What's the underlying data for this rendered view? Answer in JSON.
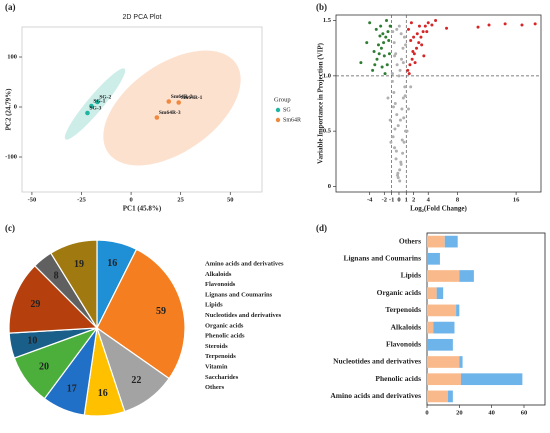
{
  "chart_data": [
    {
      "type": "scatter",
      "panel": "(a)",
      "title": "2D PCA Plot",
      "xlabel": "PC1 (45.8%)",
      "ylabel": "PC2 (24.79%)",
      "xlim": [
        -55,
        66
      ],
      "xticks": [
        -50,
        -25,
        0,
        25,
        50
      ],
      "ylim": [
        -170,
        160
      ],
      "yticks": [
        -100,
        0,
        100
      ],
      "legend_title": "Group",
      "series": [
        {
          "name": "SG",
          "color": "#1fb5a0",
          "labels": [
            "SG-2",
            "SG-1",
            "SG-3"
          ],
          "x": [
            -17,
            -20,
            -22
          ],
          "y": [
            10,
            2,
            -12
          ]
        },
        {
          "name": "Sm64R",
          "color": "#f0883e",
          "labels": [
            "Sm64R-2",
            "Sm64R-1",
            "Sm64R-3"
          ],
          "x": [
            19,
            24,
            13
          ],
          "y": [
            11,
            9,
            -21
          ]
        }
      ]
    },
    {
      "type": "volcano",
      "panel": "(b)",
      "xlabel": "Log₂(Fold Change)",
      "ylabel": "Variable Importance in Projection (VIP)",
      "xlim": [
        -8.6,
        19.4
      ],
      "xticks": [
        -4,
        -2,
        -1,
        0,
        1,
        2,
        4,
        8,
        16
      ],
      "ylim": [
        -0.05,
        1.55
      ],
      "yticks": [
        0,
        0.5,
        {
          "value": 1,
          "label": "1.0"
        },
        1.5
      ],
      "thresholds": {
        "x": [
          -1,
          1
        ],
        "y": 1
      },
      "series": [
        {
          "color": "#b0b0b0",
          "x": [
            -0.2,
            0.1,
            0.3,
            -0.4,
            0.5,
            -0.6,
            0.7,
            -0.8,
            0.9,
            -0.1,
            0.2,
            -0.3,
            0.4,
            -0.5,
            0.6,
            -0.7,
            0.8,
            -0.9,
            0.0,
            0.15,
            -0.25,
            0.35,
            -0.45,
            0.55,
            -0.65,
            0.75,
            -0.85,
            0.05,
            -0.15,
            0.25,
            -0.35,
            0.45,
            -0.55,
            0.65,
            -0.75,
            0.85,
            -1.2,
            1.3,
            -1.5,
            1.6,
            -1.1,
            1.1,
            0.3,
            -0.3,
            0.1,
            -0.1,
            0.6,
            -0.6,
            0.9,
            -0.9
          ],
          "y": [
            0.1,
            0.15,
            0.2,
            0.25,
            0.3,
            0.35,
            0.4,
            0.45,
            0.5,
            0.55,
            0.6,
            0.65,
            0.7,
            0.75,
            0.8,
            0.85,
            0.9,
            0.95,
            1.0,
            1.05,
            1.1,
            1.15,
            1.2,
            1.25,
            1.3,
            1.35,
            1.4,
            1.45,
            0.12,
            0.22,
            0.32,
            0.42,
            0.52,
            0.62,
            0.72,
            0.82,
            0.6,
            0.7,
            0.8,
            0.9,
            0.4,
            0.5,
            1.38,
            1.42,
            0.05,
            0.08,
            1.12,
            1.18,
            1.28,
            1.02
          ]
        },
        {
          "color": "#2e7d32",
          "x": [
            -1.2,
            -1.5,
            -1.8,
            -2.1,
            -2.4,
            -2.7,
            -3.0,
            -3.3,
            -3.6,
            -4.0,
            -4.4,
            -1.3,
            -1.6,
            -1.9,
            -2.2,
            -2.5,
            -2.8,
            -3.1,
            -3.4,
            -1.4,
            -1.7,
            -2.0,
            -2.3,
            -2.6,
            -5.2
          ],
          "y": [
            1.45,
            1.4,
            1.35,
            1.3,
            1.25,
            1.2,
            1.15,
            1.1,
            1.05,
            1.48,
            1.3,
            1.2,
            1.1,
            1.02,
            1.38,
            1.45,
            1.28,
            1.42,
            1.22,
            1.32,
            1.5,
            1.18,
            1.08,
            1.36,
            1.12
          ]
        },
        {
          "color": "#d62728",
          "x": [
            1.2,
            1.5,
            1.8,
            2.1,
            2.4,
            2.7,
            3.0,
            3.3,
            3.6,
            4.0,
            4.5,
            5.0,
            1.3,
            1.6,
            1.9,
            2.2,
            2.5,
            2.8,
            3.1,
            3.4,
            3.8,
            1.4,
            1.7,
            2.0,
            6.5,
            10.8,
            12.3,
            14.5,
            16.8,
            18.6
          ],
          "y": [
            1.05,
            1.1,
            1.15,
            1.2,
            1.25,
            1.3,
            1.35,
            1.4,
            1.45,
            1.48,
            1.46,
            1.5,
            1.42,
            1.32,
            1.22,
            1.12,
            1.38,
            1.45,
            1.28,
            1.18,
            1.4,
            1.02,
            1.48,
            1.35,
            1.43,
            1.44,
            1.46,
            1.47,
            1.46,
            1.47
          ]
        }
      ]
    },
    {
      "type": "pie",
      "panel": "(c)",
      "values": [
        16,
        59,
        22,
        16,
        17,
        20,
        10,
        29,
        8,
        19
      ],
      "colors": [
        "#1f8fd6",
        "#f57f20",
        "#a3a3a3",
        "#ffc000",
        "#2070c8",
        "#4caf3c",
        "#1a5f8a",
        "#b5400e",
        "#606060",
        "#a07a10"
      ],
      "legend": [
        "Amino acids and derivatives",
        "Alkaloids",
        "Flavonoids",
        "Lignans and Coumarins",
        "Lipids",
        "Nucleotides and derivatives",
        "Organic acids",
        "Phenolic acids",
        "Steroids",
        "Terpenoids",
        "Vitamin",
        "Saccharides",
        "Others"
      ]
    },
    {
      "type": "stacked-barh",
      "panel": "(d)",
      "categories": [
        "Others",
        "Lignans and Coumarins",
        "Lipids",
        "Organic acids",
        "Terpenoids",
        "Alkaloids",
        "Flavonoids",
        "Nucleotides and derivatives",
        "Phenolic acids",
        "Amino acids and derivatives"
      ],
      "xlim": [
        0,
        73
      ],
      "xticks": [
        0,
        20,
        40,
        60
      ],
      "series": [
        {
          "color": "#f9b98a",
          "values": [
            11,
            0,
            20,
            6,
            18,
            4,
            0,
            20,
            21,
            13
          ]
        },
        {
          "color": "#6cb4ea",
          "values": [
            8,
            8,
            9,
            4,
            2,
            13,
            16,
            2,
            38,
            3
          ]
        }
      ]
    }
  ]
}
